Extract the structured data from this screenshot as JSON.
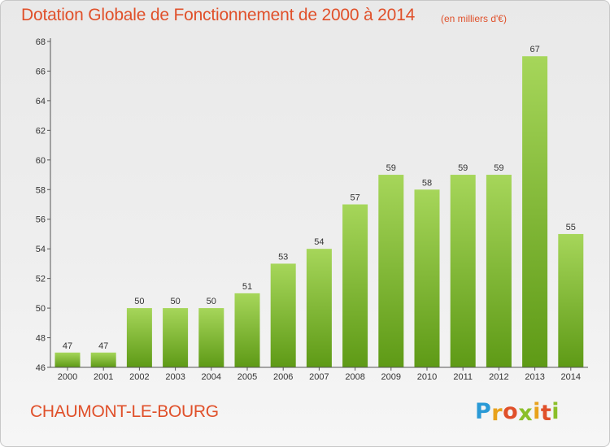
{
  "chart_data": {
    "type": "bar",
    "title": "Dotation Globale de Fonctionnement de 2000 à 2014",
    "subtitle": "(en milliers d'€)",
    "categories": [
      "2000",
      "2001",
      "2002",
      "2003",
      "2004",
      "2005",
      "2006",
      "2007",
      "2008",
      "2009",
      "2010",
      "2011",
      "2012",
      "2013",
      "2014"
    ],
    "values": [
      47,
      47,
      50,
      50,
      50,
      51,
      53,
      54,
      57,
      59,
      58,
      59,
      59,
      67,
      55
    ],
    "ylim": [
      46,
      68
    ],
    "yticks": [
      46,
      48,
      50,
      52,
      54,
      56,
      58,
      60,
      62,
      64,
      66,
      68
    ],
    "grid": false,
    "bar_color_top": "#a6d65a",
    "bar_color_bottom": "#5e9a16"
  },
  "commune": "CHAUMONT-LE-BOURG",
  "logo": {
    "letters": [
      "P",
      "r",
      "o",
      "x",
      "i",
      "t",
      "i"
    ],
    "colors": [
      "#2a9ad6",
      "#e8a21c",
      "#e0502a",
      "#8bbf2a",
      "#e8a21c",
      "#e0502a",
      "#8bbf2a"
    ]
  },
  "colors": {
    "title": "#e0502a",
    "axis": "#555555"
  }
}
